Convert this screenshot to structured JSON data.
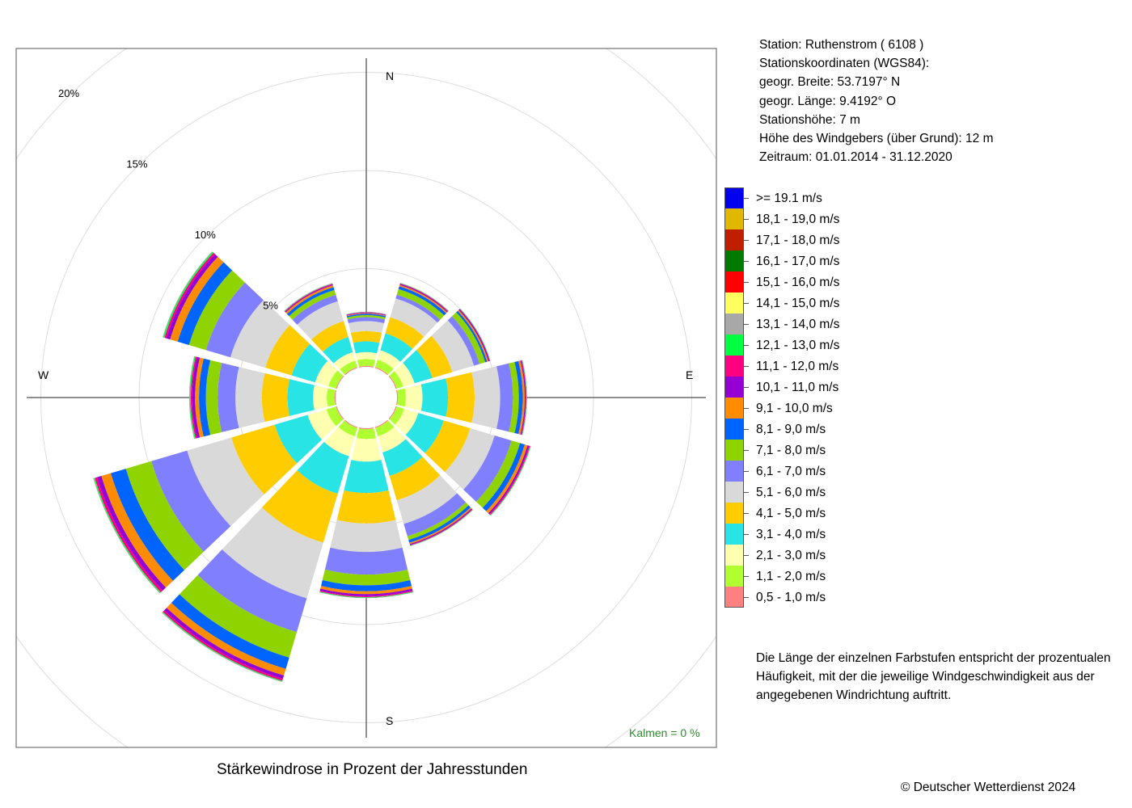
{
  "info": {
    "station": "Station:  Ruthenstrom  ( 6108 )",
    "coords_heading": "Stationskoordinaten (WGS84):",
    "latitude": "geogr. Breite: 53.7197° N",
    "longitude": "geogr. Länge:   9.4192° O",
    "station_height": "Stationshöhe: 7 m",
    "anemometer_height": "Höhe des Windgebers (über Grund): 12 m",
    "period": "Zeitraum: 01.01.2014 - 31.12.2020"
  },
  "legend": [
    {
      "label": ">= 19.1 m/s",
      "color": "#0000ee"
    },
    {
      "label": "18,1 - 19,0 m/s",
      "color": "#e0b800"
    },
    {
      "label": "17,1 - 18,0 m/s",
      "color": "#c01e00"
    },
    {
      "label": "16,1 - 17,0 m/s",
      "color": "#007a00"
    },
    {
      "label": "15,1 - 16,0 m/s",
      "color": "#ff0000"
    },
    {
      "label": "14,1 - 15,0 m/s",
      "color": "#ffff60"
    },
    {
      "label": "13,1 - 14,0 m/s",
      "color": "#a8a8a8"
    },
    {
      "label": "12,1 - 13,0 m/s",
      "color": "#00ff40"
    },
    {
      "label": "11,1 - 12,0 m/s",
      "color": "#ff0080"
    },
    {
      "label": "10,1 - 11,0 m/s",
      "color": "#9400d3"
    },
    {
      "label": "9,1 - 10,0 m/s",
      "color": "#ff8c00"
    },
    {
      "label": "8,1 - 9,0 m/s",
      "color": "#0064ff"
    },
    {
      "label": "7,1 - 8,0 m/s",
      "color": "#8fd400"
    },
    {
      "label": "6,1 - 7,0 m/s",
      "color": "#8080ff"
    },
    {
      "label": "5,1 - 6,0 m/s",
      "color": "#d9d9d9"
    },
    {
      "label": "4,1 - 5,0 m/s",
      "color": "#ffcc00"
    },
    {
      "label": "3,1 - 4,0 m/s",
      "color": "#28e4e4"
    },
    {
      "label": "2,1 - 3,0 m/s",
      "color": "#ffffb0"
    },
    {
      "label": "1,1 - 2,0 m/s",
      "color": "#b0ff30"
    },
    {
      "label": "0,5 - 1,0 m/s",
      "color": "#ff8080"
    }
  ],
  "note": [
    "Die Länge der einzelnen Farbstufen entspricht der prozentualen",
    "Häufigkeit, mit der die jeweilige Windgeschwindigkeit aus der",
    "angegebenen Windrichtung auftritt."
  ],
  "caption": "Stärkewindrose in Prozent der Jahresstunden",
  "copyright": "© Deutscher Wetterdienst  2024",
  "kalmen": "Kalmen  =  0 %",
  "chart_data": {
    "type": "windrose",
    "title": "Stärkewindrose in Prozent der Jahresstunden",
    "unit": "%",
    "calms_percent": 0,
    "ring_labels": [
      "5%",
      "10%",
      "15%",
      "20%"
    ],
    "ring_values": [
      5,
      10,
      15,
      20
    ],
    "compass_labels": {
      "N": "N",
      "E": "E",
      "S": "S",
      "W": "W"
    },
    "speed_classes": [
      "0,5 - 1,0 m/s",
      "1,1 - 2,0 m/s",
      "2,1 - 3,0 m/s",
      "3,1 - 4,0 m/s",
      "4,1 - 5,0 m/s",
      "5,1 - 6,0 m/s",
      "6,1 - 7,0 m/s",
      "7,1 - 8,0 m/s",
      "8,1 - 9,0 m/s",
      "9,1 - 10,0 m/s",
      "10,1 - 11,0 m/s",
      "11,1 - 12,0 m/s",
      "12,1 - 13,0 m/s",
      "13,1 - 14,0 m/s",
      "14,1 - 15,0 m/s",
      "15,1 - 16,0 m/s",
      "16,1 - 17,0 m/s",
      "17,1 - 18,0 m/s",
      "18,1 - 19,0 m/s",
      ">= 19.1 m/s"
    ],
    "directions": [
      {
        "deg": 0,
        "cumulative": [
          0.05,
          0.4,
          0.75,
          1.3,
          1.82,
          2.33,
          2.53,
          2.63,
          2.7,
          2.73,
          2.76,
          2.78,
          2.79,
          2.8
        ]
      },
      {
        "deg": 30,
        "cumulative": [
          0.05,
          0.45,
          0.95,
          1.85,
          2.7,
          3.7,
          3.9,
          4.2,
          4.35,
          4.42,
          4.47,
          4.5,
          4.52,
          4.53
        ]
      },
      {
        "deg": 60,
        "cumulative": [
          0.05,
          0.4,
          1.0,
          1.95,
          3.0,
          4.15,
          4.45,
          4.75,
          4.85,
          4.92,
          4.98,
          5.0,
          5.02,
          5.03
        ]
      },
      {
        "deg": 90,
        "cumulative": [
          0.05,
          0.45,
          1.3,
          2.6,
          3.95,
          5.25,
          5.9,
          6.2,
          6.4,
          6.5,
          6.55,
          6.58,
          6.6,
          6.62
        ]
      },
      {
        "deg": 120,
        "cumulative": [
          0.05,
          0.45,
          1.2,
          2.55,
          3.95,
          5.25,
          6.15,
          6.6,
          6.85,
          7.0,
          7.08,
          7.13,
          7.16,
          7.18
        ]
      },
      {
        "deg": 150,
        "cumulative": [
          0.05,
          0.5,
          1.35,
          2.6,
          3.9,
          5.15,
          5.8,
          6.0,
          6.15,
          6.22,
          6.27,
          6.3,
          6.32,
          6.33
        ]
      },
      {
        "deg": 180,
        "cumulative": [
          0.05,
          0.55,
          1.7,
          3.3,
          4.85,
          6.3,
          7.45,
          8.0,
          8.3,
          8.45,
          8.55,
          8.6,
          8.63,
          8.65
        ]
      },
      {
        "deg": 210,
        "cumulative": [
          0.05,
          0.5,
          1.55,
          3.55,
          6.15,
          9.1,
          10.9,
          12.25,
          12.85,
          13.2,
          13.38,
          13.48,
          13.52,
          13.55
        ]
      },
      {
        "deg": 240,
        "cumulative": [
          0.05,
          0.55,
          1.55,
          3.3,
          5.6,
          7.95,
          9.85,
          11.2,
          12.0,
          12.5,
          12.73,
          12.85,
          12.9,
          12.93
        ]
      },
      {
        "deg": 270,
        "cumulative": [
          0.05,
          0.45,
          1.15,
          2.45,
          3.75,
          5.1,
          6.0,
          6.6,
          6.95,
          7.15,
          7.3,
          7.37,
          7.42,
          7.45
        ]
      },
      {
        "deg": 300,
        "cumulative": [
          0.05,
          0.45,
          1.15,
          2.4,
          3.8,
          5.65,
          6.95,
          7.85,
          8.45,
          8.85,
          9.05,
          9.15,
          9.22,
          9.25
        ]
      },
      {
        "deg": 330,
        "cumulative": [
          0.05,
          0.4,
          0.85,
          1.65,
          2.5,
          3.55,
          3.9,
          4.15,
          4.3,
          4.4,
          4.45,
          4.48,
          4.5,
          4.52
        ]
      }
    ]
  }
}
